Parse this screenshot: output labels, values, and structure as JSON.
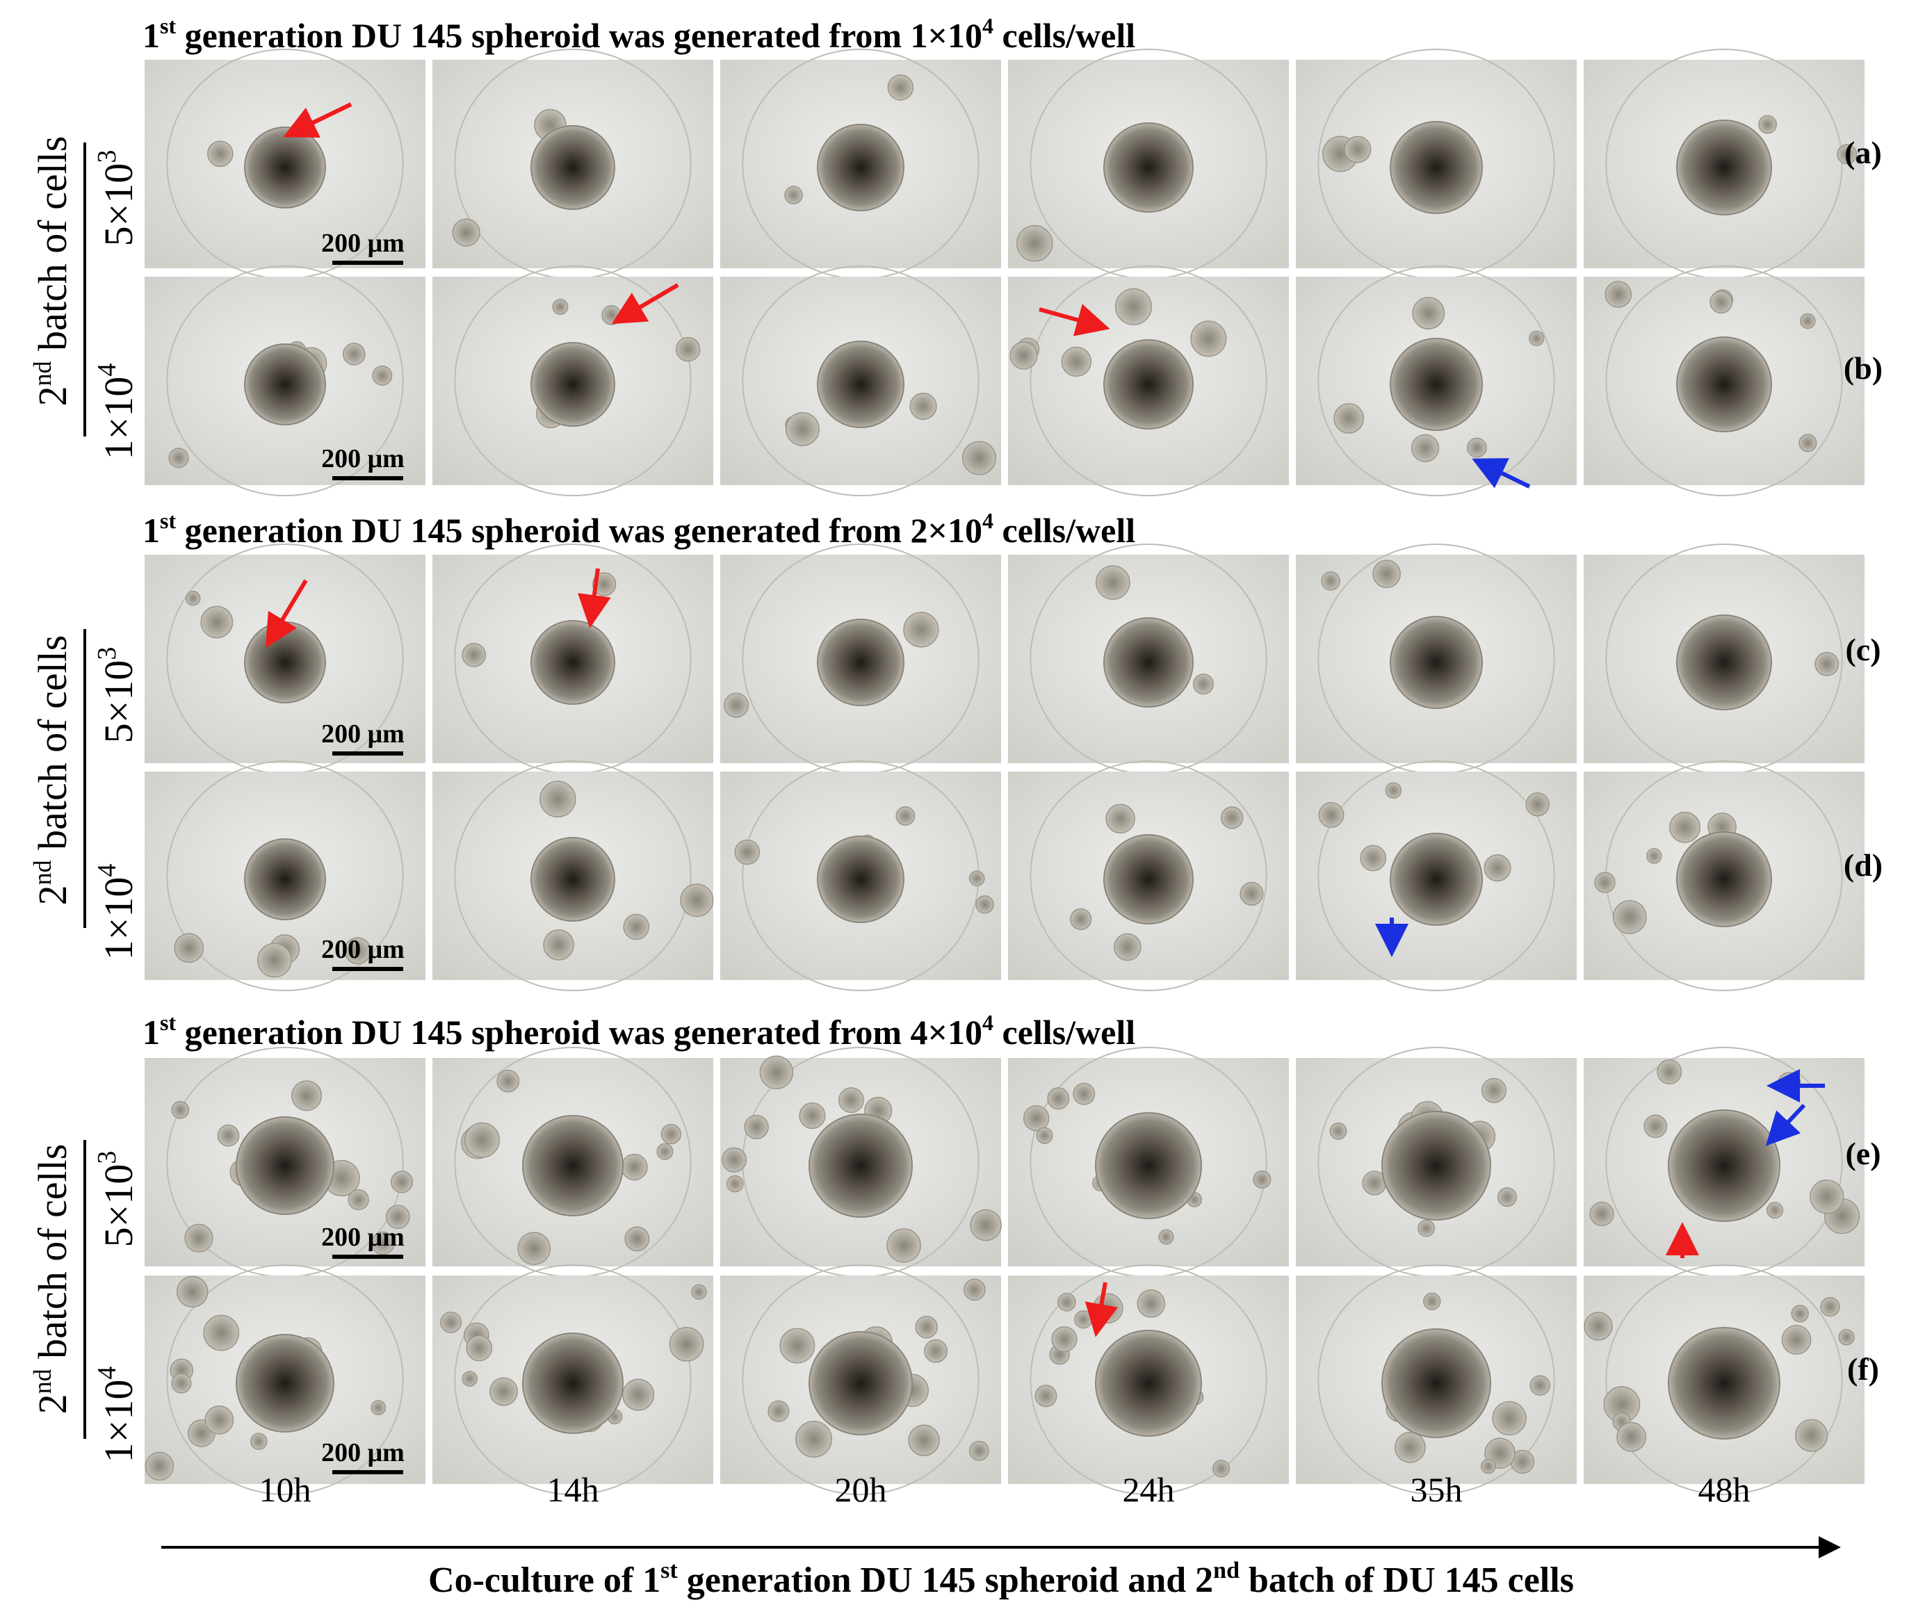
{
  "sections": [
    {
      "title": {
        "lead": "1",
        "sup": "st",
        "mid": " generation DU 145 spheroid was generated from 1×10",
        "exp": "4",
        "tail": " cells/well"
      },
      "rows": [
        {
          "conc_base": "5×10",
          "conc_exp": "3",
          "letter": "(a)",
          "scale_bar": "200 μm"
        },
        {
          "conc_base": "1×10",
          "conc_exp": "4",
          "letter": "(b)",
          "scale_bar": "200 μm"
        }
      ]
    },
    {
      "title": {
        "lead": "1",
        "sup": "st",
        "mid": " generation DU 145 spheroid was generated from 2×10",
        "exp": "4",
        "tail": " cells/well"
      },
      "rows": [
        {
          "conc_base": "5×10",
          "conc_exp": "3",
          "letter": "(c)",
          "scale_bar": "200 μm"
        },
        {
          "conc_base": "1×10",
          "conc_exp": "4",
          "letter": "(d)",
          "scale_bar": "200 μm"
        }
      ]
    },
    {
      "title": {
        "lead": "1",
        "sup": "st",
        "mid": " generation DU 145 spheroid was generated from 4×10",
        "exp": "4",
        "tail": " cells/well"
      },
      "rows": [
        {
          "conc_base": "5×10",
          "conc_exp": "3",
          "letter": "(e)",
          "scale_bar": "200 μm"
        },
        {
          "conc_base": "1×10",
          "conc_exp": "4",
          "letter": "(f)",
          "scale_bar": "200 μm"
        }
      ]
    }
  ],
  "side_label": {
    "lead": "2",
    "sup": "nd",
    "tail": " batch of cells"
  },
  "timepoints": [
    "10h",
    "14h",
    "20h",
    "24h",
    "35h",
    "48h"
  ],
  "x_axis_title": {
    "lead": "Co-culture of 1",
    "sup1": "st",
    "mid": " generation DU 145 spheroid and 2",
    "sup2": "nd",
    "tail": " batch of DU 145 cells"
  },
  "colors": {
    "arrow_red": "#ee1c1c",
    "arrow_blue": "#1a2fe0",
    "background_plate": "#dcdcd6",
    "spheroid_core": "#2e2a24"
  },
  "arrows": [
    {
      "row": 0,
      "col": 0,
      "color": "red"
    },
    {
      "row": 1,
      "col": 1,
      "color": "red"
    },
    {
      "row": 1,
      "col": 3,
      "color": "red"
    },
    {
      "row": 1,
      "col": 4,
      "color": "blue"
    },
    {
      "row": 2,
      "col": 0,
      "color": "red"
    },
    {
      "row": 2,
      "col": 1,
      "color": "red"
    },
    {
      "row": 3,
      "col": 4,
      "color": "blue"
    },
    {
      "row": 4,
      "col": 5,
      "color": "blue"
    },
    {
      "row": 4,
      "col": 5,
      "color": "blue"
    },
    {
      "row": 4,
      "col": 5,
      "color": "red"
    },
    {
      "row": 5,
      "col": 3,
      "color": "red"
    }
  ]
}
